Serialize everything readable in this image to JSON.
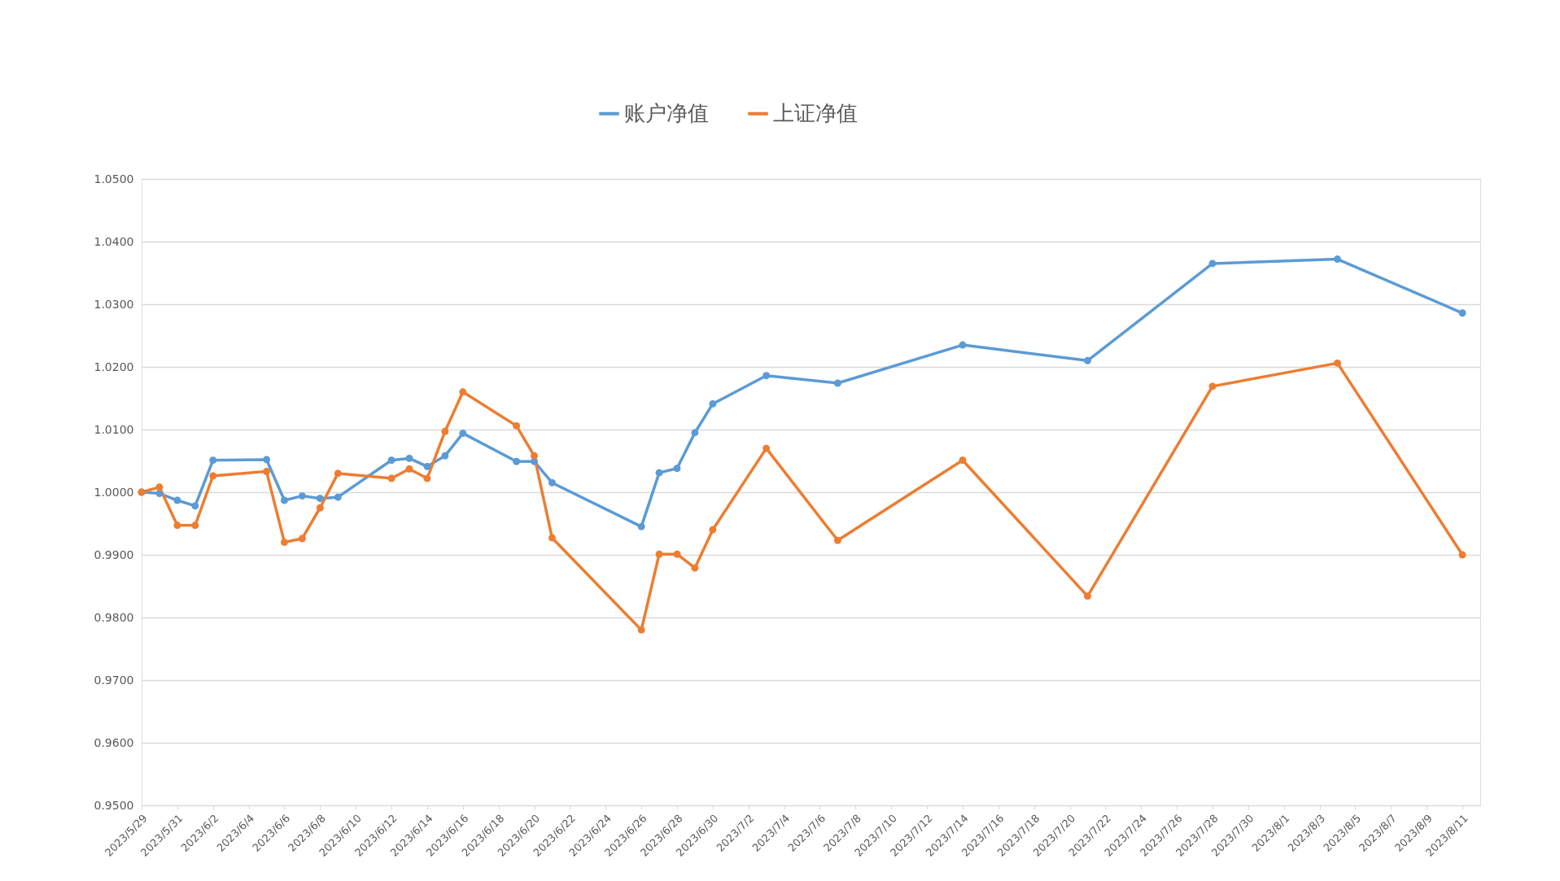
{
  "chart_data": {
    "type": "line",
    "legend": "top",
    "grid": "y",
    "marker": "circle",
    "line_style": "solid",
    "x": [
      "2023-05-29",
      "2023-05-30",
      "2023-05-31",
      "2023-06-01",
      "2023-06-02",
      "2023-06-05",
      "2023-06-06",
      "2023-06-07",
      "2023-06-08",
      "2023-06-09",
      "2023-06-12",
      "2023-06-13",
      "2023-06-14",
      "2023-06-15",
      "2023-06-16",
      "2023-06-19",
      "2023-06-20",
      "2023-06-21",
      "2023-06-26",
      "2023-06-27",
      "2023-06-28",
      "2023-06-29",
      "2023-06-30",
      "2023-07-03",
      "2023-07-07",
      "2023-07-14",
      "2023-07-21",
      "2023-07-28",
      "2023-08-04",
      "2023-08-11"
    ],
    "series": [
      {
        "name": "账户净值",
        "color": "#5b9bd5",
        "values": [
          1.0,
          0.9998,
          0.9987,
          0.9978,
          1.0051,
          1.0052,
          0.9987,
          0.9994,
          0.999,
          0.9992,
          1.0051,
          1.0054,
          1.0041,
          1.0058,
          1.0094,
          1.0049,
          1.0049,
          1.0015,
          0.9945,
          1.0031,
          1.0038,
          1.0095,
          1.0141,
          1.0186,
          1.0174,
          1.0235,
          1.021,
          1.0365,
          1.0372,
          1.0286
        ]
      },
      {
        "name": "上证净值",
        "color": "#ed7d31",
        "values": [
          1.0,
          1.0008,
          0.9947,
          0.9947,
          1.0026,
          1.0033,
          0.992,
          0.9926,
          0.9975,
          1.003,
          1.0022,
          1.0037,
          1.0022,
          1.0097,
          1.016,
          1.0106,
          1.0058,
          0.9927,
          0.978,
          0.9901,
          0.9901,
          0.9879,
          0.994,
          1.007,
          0.9923,
          1.0051,
          0.9834,
          1.0169,
          1.0206,
          0.99
        ]
      }
    ],
    "xlim": [
      "2023-05-29",
      "2023-08-12"
    ],
    "xticks": [
      {
        "value": "2023-05-29",
        "label": "2023/5/29"
      },
      {
        "value": "2023-05-31",
        "label": "2023/5/31"
      },
      {
        "value": "2023-06-02",
        "label": "2023/6/2"
      },
      {
        "value": "2023-06-04",
        "label": "2023/6/4"
      },
      {
        "value": "2023-06-06",
        "label": "2023/6/6"
      },
      {
        "value": "2023-06-08",
        "label": "2023/6/8"
      },
      {
        "value": "2023-06-10",
        "label": "2023/6/10"
      },
      {
        "value": "2023-06-12",
        "label": "2023/6/12"
      },
      {
        "value": "2023-06-14",
        "label": "2023/6/14"
      },
      {
        "value": "2023-06-16",
        "label": "2023/6/16"
      },
      {
        "value": "2023-06-18",
        "label": "2023/6/18"
      },
      {
        "value": "2023-06-20",
        "label": "2023/6/20"
      },
      {
        "value": "2023-06-22",
        "label": "2023/6/22"
      },
      {
        "value": "2023-06-24",
        "label": "2023/6/24"
      },
      {
        "value": "2023-06-26",
        "label": "2023/6/26"
      },
      {
        "value": "2023-06-28",
        "label": "2023/6/28"
      },
      {
        "value": "2023-06-30",
        "label": "2023/6/30"
      },
      {
        "value": "2023-07-02",
        "label": "2023/7/2"
      },
      {
        "value": "2023-07-04",
        "label": "2023/7/4"
      },
      {
        "value": "2023-07-06",
        "label": "2023/7/6"
      },
      {
        "value": "2023-07-08",
        "label": "2023/7/8"
      },
      {
        "value": "2023-07-10",
        "label": "2023/7/10"
      },
      {
        "value": "2023-07-12",
        "label": "2023/7/12"
      },
      {
        "value": "2023-07-14",
        "label": "2023/7/14"
      },
      {
        "value": "2023-07-16",
        "label": "2023/7/16"
      },
      {
        "value": "2023-07-18",
        "label": "2023/7/18"
      },
      {
        "value": "2023-07-20",
        "label": "2023/7/20"
      },
      {
        "value": "2023-07-22",
        "label": "2023/7/22"
      },
      {
        "value": "2023-07-24",
        "label": "2023/7/24"
      },
      {
        "value": "2023-07-26",
        "label": "2023/7/26"
      },
      {
        "value": "2023-07-28",
        "label": "2023/7/28"
      },
      {
        "value": "2023-07-30",
        "label": "2023/7/30"
      },
      {
        "value": "2023-08-01",
        "label": "2023/8/1"
      },
      {
        "value": "2023-08-03",
        "label": "2023/8/3"
      },
      {
        "value": "2023-08-05",
        "label": "2023/8/5"
      },
      {
        "value": "2023-08-07",
        "label": "2023/8/7"
      },
      {
        "value": "2023-08-09",
        "label": "2023/8/9"
      },
      {
        "value": "2023-08-11",
        "label": "2023/8/11"
      }
    ],
    "ylim": [
      0.95,
      1.05
    ],
    "yticks": [
      {
        "value": 0.95,
        "label": "0.9500"
      },
      {
        "value": 0.96,
        "label": "0.9600"
      },
      {
        "value": 0.97,
        "label": "0.9700"
      },
      {
        "value": 0.98,
        "label": "0.9800"
      },
      {
        "value": 0.99,
        "label": "0.9900"
      },
      {
        "value": 1.0,
        "label": "1.0000"
      },
      {
        "value": 1.01,
        "label": "1.0100"
      },
      {
        "value": 1.02,
        "label": "1.0200"
      },
      {
        "value": 1.03,
        "label": "1.0300"
      },
      {
        "value": 1.04,
        "label": "1.0400"
      },
      {
        "value": 1.05,
        "label": "1.0500"
      }
    ]
  }
}
